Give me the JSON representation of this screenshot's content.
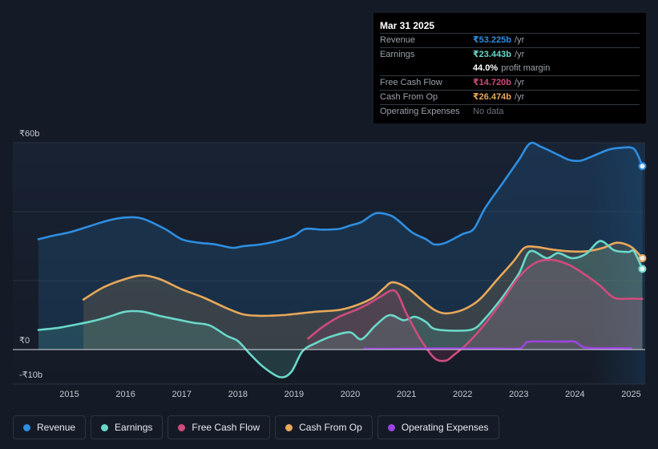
{
  "tooltip": {
    "date": "Mar 31 2025",
    "rows": [
      {
        "label": "Revenue",
        "value": "₹53.225b",
        "unit": "/yr",
        "color": "#2e8ee0"
      },
      {
        "label": "Earnings",
        "value": "₹23.443b",
        "unit": "/yr",
        "color": "#6ad8c9"
      },
      {
        "label": "",
        "value": "44.0%",
        "unit": "profit margin",
        "color": "#ffffff"
      },
      {
        "label": "Free Cash Flow",
        "value": "₹14.720b",
        "unit": "/yr",
        "color": "#cf4c7d"
      },
      {
        "label": "Cash From Op",
        "value": "₹26.474b",
        "unit": "/yr",
        "color": "#e8a85a"
      },
      {
        "label": "Operating Expenses",
        "value": "No data",
        "unit": "",
        "color": "#6b7280"
      }
    ]
  },
  "legend": [
    {
      "label": "Revenue",
      "color": "#2e8ee0"
    },
    {
      "label": "Earnings",
      "color": "#6ad8c9"
    },
    {
      "label": "Free Cash Flow",
      "color": "#cf4c7d"
    },
    {
      "label": "Cash From Op",
      "color": "#e8a85a"
    },
    {
      "label": "Operating Expenses",
      "color": "#9b45e0"
    }
  ],
  "chart_data": {
    "type": "area",
    "title": "",
    "ylim": [
      -10,
      60
    ],
    "xlim": [
      2014.45,
      2025.25
    ],
    "y_tick_labels": [
      {
        "value": 60,
        "label": "₹60b"
      },
      {
        "value": 0,
        "label": "₹0"
      },
      {
        "value": -10,
        "label": "-₹10b"
      }
    ],
    "x_ticks": [
      2015,
      2016,
      2017,
      2018,
      2019,
      2020,
      2021,
      2022,
      2023,
      2024,
      2025
    ],
    "x_tick_labels": [
      "2015",
      "2016",
      "2017",
      "2018",
      "2019",
      "2020",
      "2021",
      "2022",
      "2023",
      "2024",
      "2025"
    ],
    "forecast_shade_start": 2024.27,
    "series": [
      {
        "name": "Revenue",
        "color": "#2e8ee0",
        "fill": true,
        "end_marker": true,
        "x": [
          2014.45,
          2014.7,
          2015.0,
          2015.3,
          2015.7,
          2016.0,
          2016.3,
          2016.7,
          2017.0,
          2017.3,
          2017.6,
          2017.9,
          2018.1,
          2018.4,
          2018.7,
          2019.0,
          2019.2,
          2019.5,
          2019.8,
          2020.0,
          2020.2,
          2020.45,
          2020.7,
          2020.85,
          2021.1,
          2021.35,
          2021.5,
          2021.7,
          2022.0,
          2022.2,
          2022.4,
          2022.7,
          2023.0,
          2023.2,
          2023.4,
          2023.7,
          2023.9,
          2024.1,
          2024.3,
          2024.6,
          2024.8,
          2025.05,
          2025.2
        ],
        "y": [
          32,
          33,
          34,
          35.5,
          37.5,
          38.3,
          38,
          35,
          32,
          31,
          30.5,
          29.5,
          30,
          30.5,
          31.5,
          33,
          35,
          34.8,
          35,
          36,
          37,
          39.5,
          39,
          37.5,
          34,
          32,
          30.5,
          31,
          33.5,
          35,
          41,
          48,
          55,
          59.8,
          58.8,
          56.5,
          55,
          54.8,
          56,
          58,
          58.5,
          58.2,
          53.2
        ]
      },
      {
        "name": "Cash From Op",
        "color": "#e8a85a",
        "fill": true,
        "end_marker": true,
        "x": [
          2015.25,
          2015.6,
          2016.0,
          2016.3,
          2016.6,
          2017.0,
          2017.4,
          2017.8,
          2018.1,
          2018.4,
          2018.8,
          2019.1,
          2019.4,
          2019.8,
          2020.1,
          2020.4,
          2020.6,
          2020.75,
          2021.0,
          2021.3,
          2021.5,
          2021.7,
          2022.0,
          2022.3,
          2022.6,
          2022.9,
          2023.1,
          2023.3,
          2023.6,
          2023.9,
          2024.2,
          2024.5,
          2024.75,
          2025.0,
          2025.2
        ],
        "y": [
          14.5,
          18,
          20.5,
          21.5,
          20.5,
          17.5,
          15,
          12,
          10.2,
          9.8,
          10,
          10.5,
          11,
          11.5,
          12.8,
          15,
          17.8,
          19.5,
          18,
          14,
          11.5,
          10.5,
          11.5,
          14.5,
          20,
          25.5,
          29.5,
          29.8,
          29,
          28.5,
          28.5,
          29.5,
          31,
          29.8,
          26.5
        ]
      },
      {
        "name": "Earnings",
        "color": "#6ad8c9",
        "fill": true,
        "end_marker": true,
        "x": [
          2014.45,
          2014.8,
          2015.1,
          2015.4,
          2015.7,
          2016.0,
          2016.3,
          2016.6,
          2016.9,
          2017.2,
          2017.5,
          2017.8,
          2018.0,
          2018.2,
          2018.45,
          2018.75,
          2018.95,
          2019.15,
          2019.4,
          2019.7,
          2020.0,
          2020.2,
          2020.45,
          2020.7,
          2020.95,
          2021.15,
          2021.35,
          2021.5,
          2021.9,
          2022.2,
          2022.4,
          2022.7,
          2023.0,
          2023.2,
          2023.5,
          2023.7,
          2023.95,
          2024.2,
          2024.45,
          2024.7,
          2024.95,
          2025.05,
          2025.2
        ],
        "y": [
          5.7,
          6.3,
          7.2,
          8.2,
          9.5,
          11,
          11,
          9.8,
          8.8,
          7.8,
          7,
          4,
          2.5,
          -1,
          -5,
          -8,
          -6.5,
          -0.5,
          2,
          4,
          5,
          3,
          7,
          10,
          8.5,
          9.5,
          8,
          6,
          5.5,
          6,
          9,
          15,
          22,
          28.5,
          26.5,
          28,
          26.5,
          27.8,
          31.5,
          28.8,
          28.3,
          28.5,
          23.4
        ]
      },
      {
        "name": "Free Cash Flow",
        "color": "#cf4c7d",
        "fill": true,
        "end_marker": false,
        "x": [
          2019.25,
          2019.5,
          2019.8,
          2020.1,
          2020.35,
          2020.55,
          2020.8,
          2021.0,
          2021.25,
          2021.5,
          2021.7,
          2021.85,
          2022.1,
          2022.4,
          2022.7,
          2023.0,
          2023.3,
          2023.6,
          2023.9,
          2024.2,
          2024.45,
          2024.7,
          2025.0,
          2025.2
        ],
        "y": [
          3.2,
          6.5,
          9.5,
          11.5,
          13.5,
          15.5,
          17,
          10.5,
          3,
          -2.5,
          -3.2,
          -1.5,
          2,
          7.5,
          14,
          21,
          25.2,
          26,
          24.5,
          21.5,
          18.5,
          15,
          14.8,
          14.7
        ]
      },
      {
        "name": "Operating Expenses",
        "color": "#9b45e0",
        "fill": false,
        "end_marker": false,
        "x": [
          2020.25,
          2020.8,
          2021.4,
          2022.0,
          2022.6,
          2023.0,
          2023.1,
          2023.2,
          2023.8,
          2024.0,
          2024.15,
          2024.4,
          2024.6,
          2024.9,
          2025.0
        ],
        "y": [
          0.2,
          0.2,
          0.3,
          0.3,
          0.3,
          0.3,
          1.4,
          2.3,
          2.3,
          2.3,
          0.7,
          0.4,
          0.4,
          0.4,
          0.4
        ]
      }
    ]
  }
}
